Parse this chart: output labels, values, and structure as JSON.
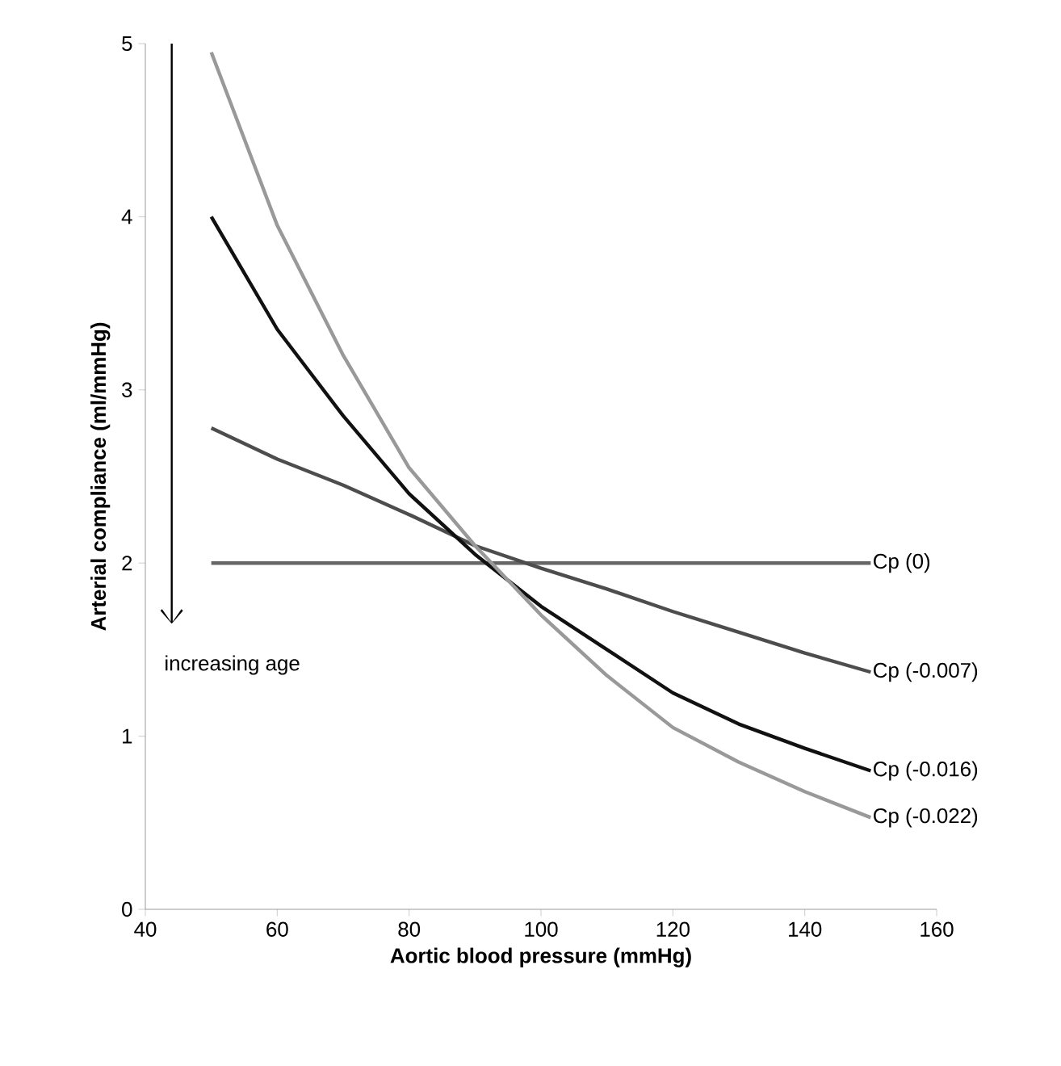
{
  "chart_data": {
    "type": "line",
    "xlabel": "Aortic blood pressure (mmHg)",
    "ylabel": "Arterial compliance (ml/mmHg)",
    "x": [
      50,
      60,
      70,
      80,
      90,
      100,
      110,
      120,
      130,
      140,
      150
    ],
    "series": [
      {
        "name": "Cp (0)",
        "color": "#666666",
        "values": [
          2,
          2,
          2,
          2,
          2,
          2,
          2,
          2,
          2,
          2,
          2
        ]
      },
      {
        "name": "Cp (-0.007)",
        "color": "#4d4d4d",
        "values": [
          2.78,
          2.6,
          2.45,
          2.28,
          2.1,
          1.97,
          1.85,
          1.72,
          1.6,
          1.48,
          1.37
        ]
      },
      {
        "name": "Cp (-0.016)",
        "color": "#111111",
        "values": [
          4.0,
          3.35,
          2.85,
          2.4,
          2.05,
          1.75,
          1.5,
          1.25,
          1.07,
          0.93,
          0.8
        ]
      },
      {
        "name": "Cp (-0.022)",
        "color": "#999999",
        "values": [
          4.95,
          3.95,
          3.2,
          2.55,
          2.1,
          1.7,
          1.35,
          1.05,
          0.85,
          0.68,
          0.53
        ]
      }
    ],
    "xlim": [
      40,
      160
    ],
    "xticks": [
      40,
      60,
      80,
      100,
      120,
      140,
      160
    ],
    "ylim": [
      0,
      5
    ],
    "yticks": [
      0,
      1,
      2,
      3,
      4,
      5
    ],
    "grid": false,
    "legend": false,
    "marker": "none",
    "line_style": "solid",
    "annotations": [
      "increasing age"
    ]
  }
}
